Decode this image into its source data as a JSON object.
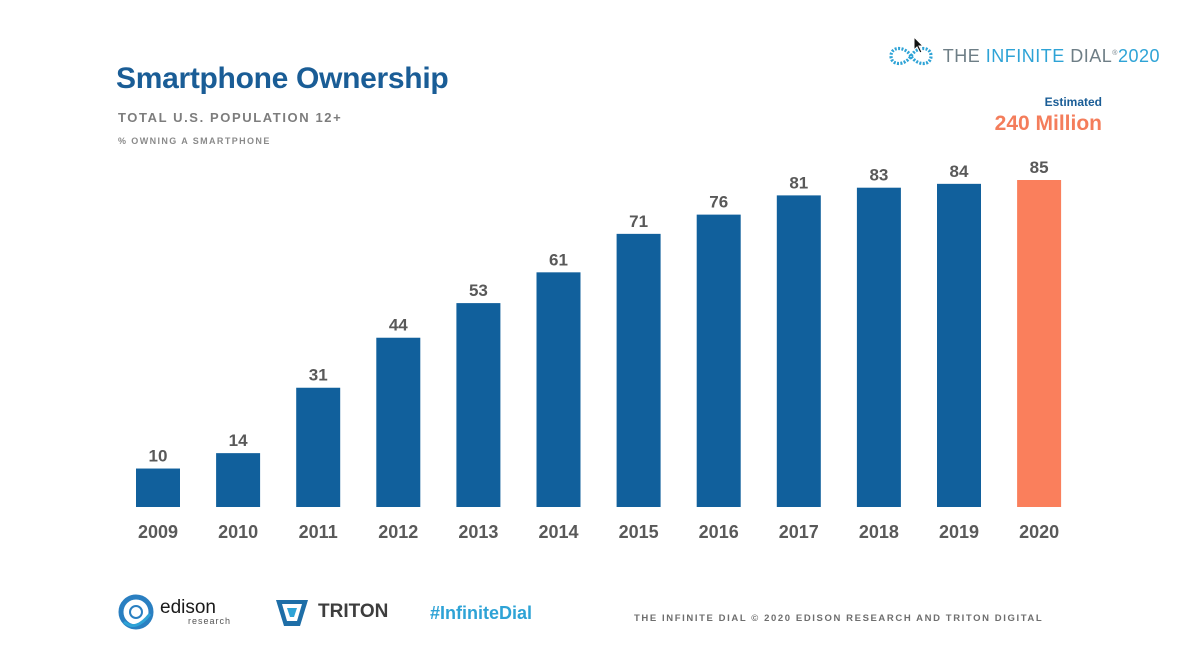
{
  "header": {
    "title": "Smartphone Ownership",
    "subtitle": "TOTAL U.S. POPULATION 12+",
    "subtitle2": "% OWNING A SMARTPHONE"
  },
  "brand": {
    "pre": "THE ",
    "accent": "INFINITE",
    "post": " DIAL",
    "mark": "®",
    "year": "2020"
  },
  "estimate": {
    "label": "Estimated",
    "value": "240 Million"
  },
  "chart_data": {
    "type": "bar",
    "title": "Smartphone Ownership",
    "subtitle": "TOTAL U.S. POPULATION 12+",
    "ylabel": "% OWNING A SMARTPHONE",
    "xlabel": "",
    "categories": [
      "2009",
      "2010",
      "2011",
      "2012",
      "2013",
      "2014",
      "2015",
      "2016",
      "2017",
      "2018",
      "2019",
      "2020"
    ],
    "values": [
      10,
      14,
      31,
      44,
      53,
      61,
      71,
      76,
      81,
      83,
      84,
      85
    ],
    "ylim": [
      0,
      85
    ],
    "grid": false,
    "legend": "none",
    "colors": {
      "default": "#11609c",
      "highlight": "#fa7f5c"
    },
    "highlight_index": 11,
    "annotation": "Estimated 240 Million"
  },
  "footer": {
    "edison_name": "edison",
    "edison_sub": "research",
    "triton_name": "TRITON",
    "hashtag": "#InfiniteDial",
    "copyright": "THE INFINITE DIAL   © 2020 EDISON RESEARCH AND TRITON DIGITAL"
  }
}
